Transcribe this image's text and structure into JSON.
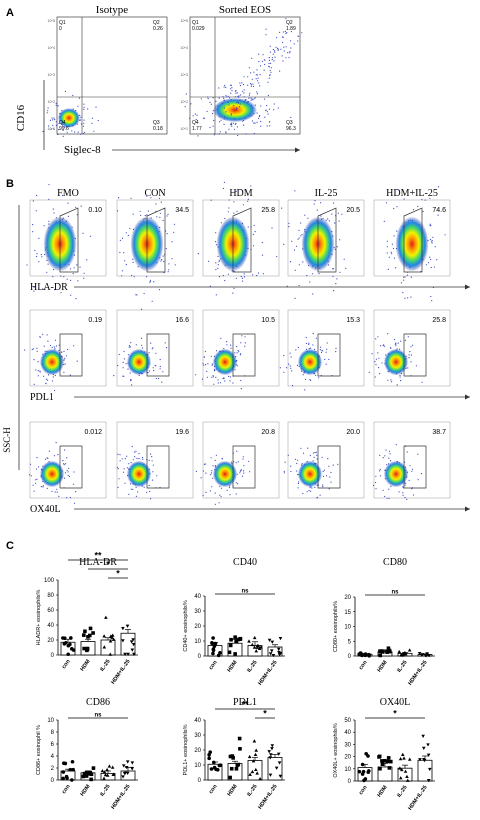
{
  "figure": {
    "panel_letters": [
      "A",
      "B",
      "C"
    ]
  },
  "panel_a": {
    "x_axis_label": "Siglec-8",
    "y_axis_label": "CD16",
    "plots": [
      {
        "title": "Isotype",
        "quadrants": {
          "q1_label": "Q1",
          "q1": "0",
          "q2_label": "Q2",
          "q2": "0.26",
          "q3_label": "Q3",
          "q3": "0.18",
          "q4_label": "Q4",
          "q4": "99.6"
        }
      },
      {
        "title": "Sorted EOS",
        "quadrants": {
          "q1_label": "Q1",
          "q1": "0.029",
          "q2_label": "Q2",
          "q2": "1.89",
          "q3_label": "Q3",
          "q3": "96.3",
          "q4_label": "Q4",
          "q4": "1.77"
        }
      }
    ],
    "tick_labels": [
      "10^5",
      "10^4",
      "10^3",
      "10^2",
      "10^1"
    ]
  },
  "panel_b": {
    "column_labels": [
      "FMO",
      "CON",
      "HDM",
      "IL-25",
      "HDM+IL-25"
    ],
    "y_axis_label": "SSC-H",
    "rows": [
      {
        "marker": "HLA-DR",
        "gate_values": [
          "0.10",
          "34.5",
          "25.8",
          "20.5",
          "74.6"
        ]
      },
      {
        "marker": "PDL1",
        "gate_values": [
          "0.19",
          "16.6",
          "10.5",
          "15.3",
          "25.8"
        ]
      },
      {
        "marker": "OX40L",
        "gate_values": [
          "0.012",
          "19.6",
          "20.8",
          "20.0",
          "38.7"
        ]
      }
    ]
  },
  "chart_data": [
    {
      "type": "bar",
      "title": "HLA-DR",
      "ylabel": "HLADR+ eosinophils%",
      "categories": [
        "con",
        "HDM",
        "IL-25",
        "HDM+IL-25"
      ],
      "values": [
        17,
        18,
        20,
        29
      ],
      "errors": [
        4,
        3,
        3,
        5
      ],
      "yticks": [
        "0",
        "20",
        "40",
        "60",
        "80",
        "100"
      ],
      "ylim": [
        0,
        100
      ],
      "significance": [
        {
          "label": "**",
          "from": 0,
          "to": 3
        },
        {
          "label": "*",
          "from": 1,
          "to": 3
        },
        {
          "label": "*",
          "from": 2,
          "to": 3
        }
      ]
    },
    {
      "type": "bar",
      "title": "CD40",
      "ylabel": "CD40+ eosinophils%",
      "categories": [
        "con",
        "HDM",
        "IL-25",
        "HDM+IL-25"
      ],
      "values": [
        7,
        8.5,
        7,
        6
      ],
      "errors": [
        2,
        2.5,
        2.5,
        1.5
      ],
      "yticks": [
        "0",
        "10",
        "20",
        "30",
        "40"
      ],
      "ylim": [
        0,
        40
      ],
      "significance": [
        {
          "label": "ns",
          "from": 0,
          "to": 3
        }
      ]
    },
    {
      "type": "bar",
      "title": "CD80",
      "ylabel": "CD80+ eosinophils%",
      "categories": [
        "con",
        "HDM",
        "IL-25",
        "HDM+IL-25"
      ],
      "values": [
        0.6,
        1.4,
        0.9,
        0.5
      ],
      "errors": [
        0.2,
        0.7,
        0.3,
        0.2
      ],
      "yticks": [
        "0",
        "5",
        "10",
        "15",
        "20"
      ],
      "ylim": [
        0,
        20
      ],
      "significance": [
        {
          "label": "ns",
          "from": 0,
          "to": 3
        }
      ]
    },
    {
      "type": "bar",
      "title": "CD86",
      "ylabel": "CD86+ eosinophil %",
      "categories": [
        "con",
        "HDM",
        "IL-25",
        "HDM+IL-25"
      ],
      "values": [
        1.5,
        1.2,
        1.1,
        1.5
      ],
      "errors": [
        0.3,
        0.3,
        0.4,
        0.6
      ],
      "yticks": [
        "0",
        "2",
        "4",
        "6",
        "8",
        "10"
      ],
      "ylim": [
        0,
        10
      ],
      "significance": [
        {
          "label": "ns",
          "from": 0,
          "to": 3
        }
      ]
    },
    {
      "type": "bar",
      "title": "PDL1",
      "ylabel": "PDL1+ eosinophils%",
      "categories": [
        "con",
        "HDM",
        "IL-25",
        "HDM+IL-25"
      ],
      "values": [
        10.5,
        11,
        13,
        15
      ],
      "errors": [
        1.5,
        1.5,
        2,
        2
      ],
      "yticks": [
        "0",
        "10",
        "20",
        "30",
        "40"
      ],
      "ylim": [
        0,
        40
      ],
      "significance": [
        {
          "label": "**",
          "from": 0,
          "to": 3
        },
        {
          "label": "*",
          "from": 2,
          "to": 3
        }
      ]
    },
    {
      "type": "bar",
      "title": "OX40L",
      "ylabel": "OX40L+ eosinophils%",
      "categories": [
        "con",
        "HDM",
        "IL-25",
        "HDM+IL-25"
      ],
      "values": [
        11,
        11.5,
        10.5,
        17
      ],
      "errors": [
        2.5,
        3,
        2.5,
        3.5
      ],
      "yticks": [
        "0",
        "10",
        "20",
        "30",
        "40",
        "50"
      ],
      "ylim": [
        0,
        50
      ],
      "significance": [
        {
          "label": "*",
          "from": 0,
          "to": 3
        }
      ]
    }
  ]
}
